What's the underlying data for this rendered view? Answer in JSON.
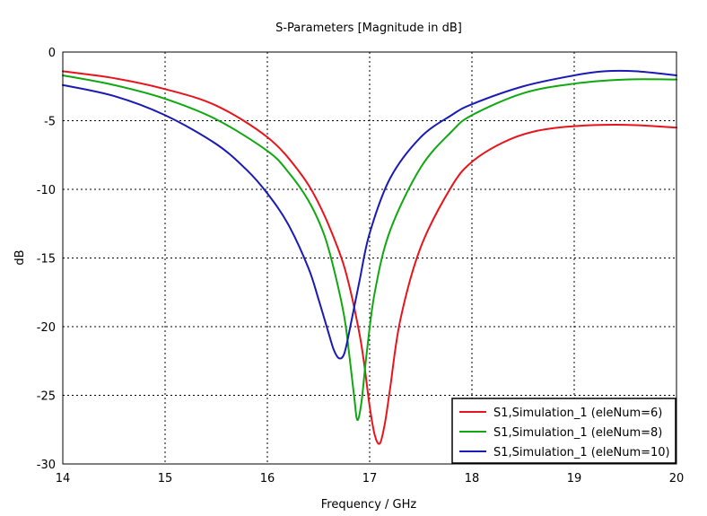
{
  "chart_data": {
    "type": "line",
    "title": "S-Parameters [Magnitude in dB]",
    "xlabel": "Frequency / GHz",
    "ylabel": "dB",
    "xlim": [
      14,
      20
    ],
    "ylim": [
      -30,
      0
    ],
    "xticks": [
      14,
      15,
      16,
      17,
      18,
      19,
      20
    ],
    "yticks": [
      0,
      -5,
      -10,
      -15,
      -20,
      -25,
      -30
    ],
    "grid": true,
    "legend_position": "bottom-right",
    "series": [
      {
        "name": "S1,Simulation_1 (eleNum=6)",
        "color": "#e8141c",
        "x": [
          14.0,
          14.5,
          15.0,
          15.5,
          16.0,
          16.3,
          16.5,
          16.7,
          16.8,
          16.9,
          16.95,
          17.0,
          17.05,
          17.1,
          17.15,
          17.2,
          17.3,
          17.5,
          17.8,
          18.0,
          18.3,
          18.6,
          19.0,
          19.5,
          20.0
        ],
        "y": [
          -1.4,
          -1.9,
          -2.7,
          -3.9,
          -6.2,
          -8.6,
          -11.0,
          -14.5,
          -17.0,
          -20.5,
          -22.9,
          -25.8,
          -27.9,
          -28.5,
          -27.0,
          -24.5,
          -19.5,
          -14.2,
          -9.8,
          -8.0,
          -6.6,
          -5.8,
          -5.4,
          -5.3,
          -5.5
        ]
      },
      {
        "name": "S1,Simulation_1 (eleNum=8)",
        "color": "#10a810",
        "x": [
          14.0,
          14.5,
          15.0,
          15.5,
          16.0,
          16.2,
          16.4,
          16.55,
          16.65,
          16.75,
          16.8,
          16.85,
          16.88,
          16.92,
          16.97,
          17.05,
          17.2,
          17.5,
          17.8,
          18.0,
          18.5,
          19.0,
          19.5,
          20.0
        ],
        "y": [
          -1.7,
          -2.4,
          -3.4,
          -4.9,
          -7.2,
          -8.7,
          -10.8,
          -13.2,
          -15.8,
          -19.2,
          -22.0,
          -25.2,
          -26.8,
          -25.5,
          -22.0,
          -17.5,
          -13.0,
          -8.4,
          -5.8,
          -4.6,
          -3.0,
          -2.3,
          -2.0,
          -2.0
        ]
      },
      {
        "name": "S1,Simulation_1 (eleNum=10)",
        "color": "#1a1ab4",
        "x": [
          14.0,
          14.5,
          15.0,
          15.5,
          15.8,
          16.0,
          16.2,
          16.4,
          16.5,
          16.6,
          16.65,
          16.7,
          16.75,
          16.8,
          16.9,
          17.0,
          17.2,
          17.5,
          17.8,
          18.0,
          18.5,
          19.0,
          19.3,
          19.6,
          20.0
        ],
        "y": [
          -2.4,
          -3.2,
          -4.6,
          -6.7,
          -8.6,
          -10.3,
          -12.5,
          -15.7,
          -18.0,
          -20.5,
          -21.7,
          -22.3,
          -22.0,
          -20.4,
          -16.7,
          -13.2,
          -9.2,
          -6.2,
          -4.6,
          -3.8,
          -2.5,
          -1.7,
          -1.4,
          -1.4,
          -1.7
        ]
      }
    ]
  }
}
